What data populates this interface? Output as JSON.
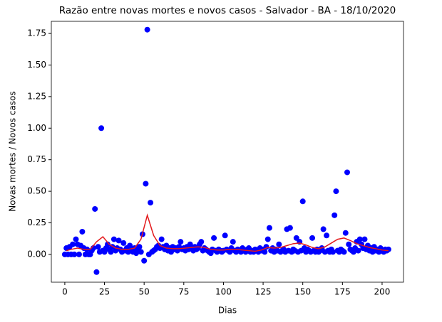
{
  "chart_data": {
    "type": "scatter",
    "title": "Razão entre novas mortes e novos casos - Salvador - BA - 18/10/2020",
    "x_label": "Dias",
    "y_label": "Novas mortes / Novos casos",
    "xlim": [
      -8.5,
      213.5
    ],
    "ylim": [
      -0.22,
      1.846
    ],
    "xticks": [
      0,
      25,
      50,
      75,
      100,
      125,
      150,
      175,
      200
    ],
    "yticks": [
      {
        "value": 0,
        "label": "0.00"
      },
      {
        "value": 0.25,
        "label": "0.25"
      },
      {
        "value": 0.5,
        "label": "0.50"
      },
      {
        "value": 0.75,
        "label": "0.75"
      },
      {
        "value": 1,
        "label": "1.00"
      },
      {
        "value": 1.25,
        "label": "1.25"
      },
      {
        "value": 1.5,
        "label": "1.50"
      },
      {
        "value": 1.75,
        "label": "1.75"
      }
    ],
    "series": [
      {
        "type": "scatter",
        "color": "#0000ff",
        "x": [
          0,
          1,
          2,
          3,
          4,
          5,
          6,
          7,
          8,
          9,
          10,
          11,
          12,
          13,
          14,
          15,
          16,
          17,
          18,
          19,
          20,
          21,
          22,
          23,
          24,
          25,
          26,
          27,
          28,
          29,
          30,
          31,
          32,
          33,
          34,
          35,
          36,
          37,
          38,
          39,
          40,
          41,
          42,
          43,
          44,
          45,
          46,
          47,
          48,
          49,
          50,
          51,
          52,
          53,
          54,
          55,
          56,
          57,
          58,
          59,
          60,
          61,
          62,
          63,
          64,
          65,
          66,
          67,
          68,
          69,
          70,
          71,
          72,
          73,
          74,
          75,
          76,
          77,
          78,
          79,
          80,
          81,
          82,
          83,
          84,
          85,
          86,
          87,
          88,
          89,
          90,
          91,
          92,
          93,
          94,
          95,
          96,
          97,
          98,
          99,
          100,
          101,
          102,
          103,
          104,
          105,
          106,
          107,
          108,
          109,
          110,
          111,
          112,
          113,
          114,
          115,
          116,
          117,
          118,
          119,
          120,
          121,
          122,
          123,
          124,
          125,
          126,
          127,
          128,
          129,
          130,
          131,
          132,
          133,
          134,
          135,
          136,
          137,
          138,
          139,
          140,
          141,
          142,
          143,
          144,
          145,
          146,
          147,
          148,
          149,
          150,
          151,
          152,
          153,
          154,
          155,
          156,
          157,
          158,
          159,
          160,
          161,
          162,
          163,
          164,
          165,
          166,
          167,
          168,
          169,
          170,
          171,
          172,
          173,
          174,
          175,
          176,
          177,
          178,
          179,
          180,
          181,
          182,
          183,
          184,
          185,
          186,
          187,
          188,
          189,
          190,
          191,
          192,
          193,
          194,
          195,
          196,
          197,
          198,
          199,
          200,
          201,
          202,
          203,
          204
        ],
        "values": [
          0,
          0.05,
          0,
          0.06,
          0,
          0.08,
          0,
          0.12,
          0.08,
          0,
          0.07,
          0.18,
          0.05,
          0,
          0.04,
          0,
          0,
          0.03,
          0.05,
          0.36,
          -0.14,
          0.06,
          0.02,
          1.0,
          0.03,
          0.02,
          0.05,
          0.08,
          0.04,
          0.02,
          0.06,
          0.12,
          0.03,
          0.05,
          0.11,
          0.04,
          0.02,
          0.09,
          0.03,
          0.05,
          0.02,
          0.07,
          0.04,
          0.02,
          0.05,
          0.01,
          0.03,
          0.06,
          0.02,
          0.16,
          -0.05,
          0.56,
          1.78,
          0.0,
          0.41,
          0.02,
          0.03,
          0.04,
          0.06,
          0.07,
          0.05,
          0.12,
          0.06,
          0.04,
          0.07,
          0.03,
          0.05,
          0.02,
          0.06,
          0.04,
          0.05,
          0.03,
          0.06,
          0.1,
          0.04,
          0.05,
          0.03,
          0.06,
          0.04,
          0.08,
          0.05,
          0.03,
          0.06,
          0.04,
          0.05,
          0.08,
          0.1,
          0.03,
          0.05,
          0.04,
          0.03,
          0.02,
          0.01,
          0.04,
          0.13,
          0.03,
          0.02,
          0.04,
          0.03,
          0.02,
          0.03,
          0.15,
          0.04,
          0.03,
          0.02,
          0.05,
          0.1,
          0.03,
          0.02,
          0.04,
          0.03,
          0.02,
          0.05,
          0.03,
          0.02,
          0.04,
          0.05,
          0.02,
          0.03,
          0.02,
          0.04,
          0.03,
          0.02,
          0.05,
          0.03,
          0.04,
          0.02,
          0.06,
          0.12,
          0.21,
          0.03,
          0.05,
          0.02,
          0.04,
          0.03,
          0.08,
          0.02,
          0.03,
          0.04,
          0.02,
          0.2,
          0.03,
          0.21,
          0.02,
          0.04,
          0.03,
          0.13,
          0.02,
          0.1,
          0.03,
          0.42,
          0.05,
          0.02,
          0.04,
          0.03,
          0.02,
          0.13,
          0.03,
          0.02,
          0.04,
          0.02,
          0.03,
          0.05,
          0.2,
          0.02,
          0.15,
          0.03,
          0.02,
          0.04,
          0.02,
          0.31,
          0.5,
          0.03,
          0.02,
          0.04,
          0.03,
          0.02,
          0.17,
          0.65,
          0.08,
          0.04,
          0.03,
          0.02,
          0.05,
          0.1,
          0.03,
          0.12,
          0.08,
          0.05,
          0.12,
          0.04,
          0.07,
          0.03,
          0.05,
          0.02,
          0.06,
          0.03,
          0.04,
          0.02,
          0.05,
          0.03,
          0.02,
          0.04,
          0.03,
          0.04
        ]
      },
      {
        "type": "line",
        "color": "#e31a1c",
        "x": [
          1,
          4,
          8,
          12,
          16,
          20,
          24,
          28,
          32,
          36,
          40,
          44,
          48,
          52,
          56,
          60,
          64,
          68,
          72,
          76,
          80,
          84,
          88,
          92,
          96,
          100,
          104,
          108,
          112,
          116,
          120,
          124,
          128,
          132,
          136,
          140,
          144,
          148,
          152,
          156,
          160,
          164,
          168,
          172,
          176,
          180,
          184,
          188,
          192,
          196,
          200,
          204
        ],
        "values": [
          0.03,
          0.04,
          0.05,
          0.04,
          0.04,
          0.1,
          0.14,
          0.08,
          0.05,
          0.04,
          0.04,
          0.05,
          0.12,
          0.31,
          0.15,
          0.07,
          0.05,
          0.045,
          0.045,
          0.05,
          0.055,
          0.06,
          0.055,
          0.04,
          0.035,
          0.035,
          0.04,
          0.04,
          0.035,
          0.03,
          0.025,
          0.035,
          0.055,
          0.05,
          0.055,
          0.07,
          0.085,
          0.09,
          0.075,
          0.055,
          0.045,
          0.06,
          0.09,
          0.12,
          0.13,
          0.11,
          0.085,
          0.07,
          0.055,
          0.045,
          0.035,
          0.03
        ]
      }
    ]
  }
}
